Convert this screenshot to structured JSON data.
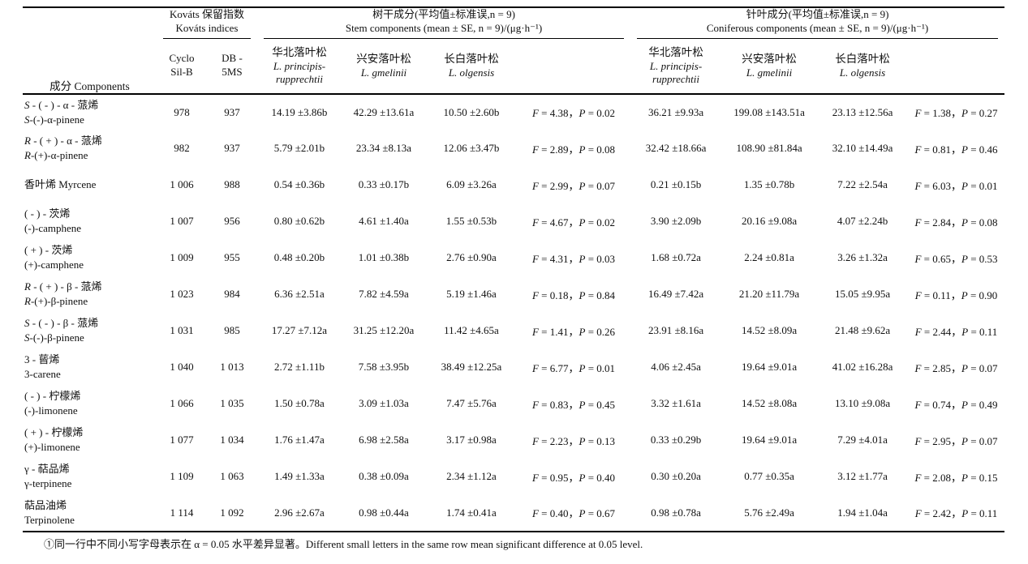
{
  "header": {
    "components": "成分 Components",
    "groups": [
      {
        "cn": "Kováts 保留指数",
        "en": "Kováts indices"
      },
      {
        "cn": "树干成分(平均值±标准误,n = 9)",
        "en": "Stem components (mean ± SE, n = 9)/(μg·h⁻¹)"
      },
      {
        "cn": "针叶成分(平均值±标准误,n = 9)",
        "en": "Coniferous components (mean ± SE, n = 9)/(μg·h⁻¹)"
      }
    ],
    "kovats_cols": [
      {
        "l1": "Cyclo",
        "l2": "Sil-B"
      },
      {
        "l1": "DB -",
        "l2": "5MS"
      }
    ],
    "species": [
      {
        "cn": "华北落叶松",
        "latin": "L. principis-rupprechtii"
      },
      {
        "cn": "兴安落叶松",
        "latin": "L. gmelinii"
      },
      {
        "cn": "长白落叶松",
        "latin": "L. olgensis"
      }
    ]
  },
  "rows": [
    {
      "cn": "S - ( - ) - α - 蒎烯",
      "en": "S-(-)-α-pinene",
      "cyclo": "978",
      "db": "937",
      "stem": [
        "14.19 ±3.86b",
        "42.29 ±13.61a",
        "10.50 ±2.60b"
      ],
      "stem_fp": "F = 4.38，P = 0.02",
      "conifer": [
        "36.21 ±9.93a",
        "199.08 ±143.51a",
        "23.13 ±12.56a"
      ],
      "conifer_fp": "F = 1.38，P = 0.27"
    },
    {
      "cn": "R - ( + ) - α - 蒎烯",
      "en": "R-(+)-α-pinene",
      "cyclo": "982",
      "db": "937",
      "stem": [
        "5.79 ±2.01b",
        "23.34 ±8.13a",
        "12.06 ±3.47b"
      ],
      "stem_fp": "F = 2.89，P = 0.08",
      "conifer": [
        "32.42 ±18.66a",
        "108.90 ±81.84a",
        "32.10 ±14.49a"
      ],
      "conifer_fp": "F = 0.81，P = 0.46"
    },
    {
      "cn": "香叶烯 Myrcene",
      "en": "",
      "cyclo": "1 006",
      "db": "988",
      "stem": [
        "0.54 ±0.36b",
        "0.33 ±0.17b",
        "6.09 ±3.26a"
      ],
      "stem_fp": "F = 2.99，P = 0.07",
      "conifer": [
        "0.21 ±0.15b",
        "1.35 ±0.78b",
        "7.22 ±2.54a"
      ],
      "conifer_fp": "F = 6.03，P = 0.01"
    },
    {
      "cn": "( - ) - 茨烯",
      "en": "(-)-camphene",
      "cyclo": "1 007",
      "db": "956",
      "stem": [
        "0.80 ±0.62b",
        "4.61 ±1.40a",
        "1.55 ±0.53b"
      ],
      "stem_fp": "F = 4.67，P = 0.02",
      "conifer": [
        "3.90 ±2.09b",
        "20.16 ±9.08a",
        "4.07 ±2.24b"
      ],
      "conifer_fp": "F = 2.84，P = 0.08"
    },
    {
      "cn": "( + ) - 茨烯",
      "en": "(+)-camphene",
      "cyclo": "1 009",
      "db": "955",
      "stem": [
        "0.48 ±0.20b",
        "1.01 ±0.38b",
        "2.76 ±0.90a"
      ],
      "stem_fp": "F = 4.31，P = 0.03",
      "conifer": [
        "1.68 ±0.72a",
        "2.24 ±0.81a",
        "3.26 ±1.32a"
      ],
      "conifer_fp": "F = 0.65，P = 0.53"
    },
    {
      "cn": "R - ( + ) - β - 蒎烯",
      "en": "R-(+)-β-pinene",
      "cyclo": "1 023",
      "db": "984",
      "stem": [
        "6.36 ±2.51a",
        "7.82 ±4.59a",
        "5.19 ±1.46a"
      ],
      "stem_fp": "F = 0.18，P = 0.84",
      "conifer": [
        "16.49 ±7.42a",
        "21.20 ±11.79a",
        "15.05 ±9.95a"
      ],
      "conifer_fp": "F = 0.11，P = 0.90"
    },
    {
      "cn": "S - ( - ) - β - 蒎烯",
      "en": "S-(-)-β-pinene",
      "cyclo": "1 031",
      "db": "985",
      "stem": [
        "17.27 ±7.12a",
        "31.25 ±12.20a",
        "11.42 ±4.65a"
      ],
      "stem_fp": "F = 1.41，P = 0.26",
      "conifer": [
        "23.91 ±8.16a",
        "14.52 ±8.09a",
        "21.48 ±9.62a"
      ],
      "conifer_fp": "F = 2.44，P = 0.11"
    },
    {
      "cn": "3 - 蒈烯",
      "en": "3-carene",
      "cyclo": "1 040",
      "db": "1 013",
      "stem": [
        "2.72 ±1.11b",
        "7.58 ±3.95b",
        "38.49 ±12.25a"
      ],
      "stem_fp": "F = 6.77，P = 0.01",
      "conifer": [
        "4.06 ±2.45a",
        "19.64 ±9.01a",
        "41.02 ±16.28a"
      ],
      "conifer_fp": "F = 2.85，P = 0.07"
    },
    {
      "cn": "( - ) - 柠檬烯",
      "en": "(-)-limonene",
      "cyclo": "1 066",
      "db": "1 035",
      "stem": [
        "1.50 ±0.78a",
        "3.09 ±1.03a",
        "7.47 ±5.76a"
      ],
      "stem_fp": "F = 0.83，P = 0.45",
      "conifer": [
        "3.32 ±1.61a",
        "14.52 ±8.08a",
        "13.10 ±9.08a"
      ],
      "conifer_fp": "F = 0.74，P = 0.49"
    },
    {
      "cn": "( + ) - 柠檬烯",
      "en": "(+)-limonene",
      "cyclo": "1 077",
      "db": "1 034",
      "stem": [
        "1.76 ±1.47a",
        "6.98 ±2.58a",
        "3.17 ±0.98a"
      ],
      "stem_fp": "F = 2.23，P = 0.13",
      "conifer": [
        "0.33 ±0.29b",
        "19.64 ±9.01a",
        "7.29 ±4.01a"
      ],
      "conifer_fp": "F = 2.95，P = 0.07"
    },
    {
      "cn": "γ - 萜品烯",
      "en": "γ-terpinene",
      "cyclo": "1 109",
      "db": "1 063",
      "stem": [
        "1.49 ±1.33a",
        "0.38 ±0.09a",
        "2.34 ±1.12a"
      ],
      "stem_fp": "F = 0.95，P = 0.40",
      "conifer": [
        "0.30 ±0.20a",
        "0.77 ±0.35a",
        "3.12 ±1.77a"
      ],
      "conifer_fp": "F = 2.08，P = 0.15"
    },
    {
      "cn": "萜品油烯",
      "en": "Terpinolene",
      "cyclo": "1 114",
      "db": "1 092",
      "stem": [
        "2.96 ±2.67a",
        "0.98 ±0.44a",
        "1.74 ±0.41a"
      ],
      "stem_fp": "F = 0.40，P = 0.67",
      "conifer": [
        "0.98 ±0.78a",
        "5.76 ±2.49a",
        "1.94 ±1.04a"
      ],
      "conifer_fp": "F = 2.42，P = 0.11"
    }
  ],
  "footnote": "①同一行中不同小写字母表示在 α = 0.05 水平差异显著。Different small letters in the same row mean significant difference at 0.05 level."
}
